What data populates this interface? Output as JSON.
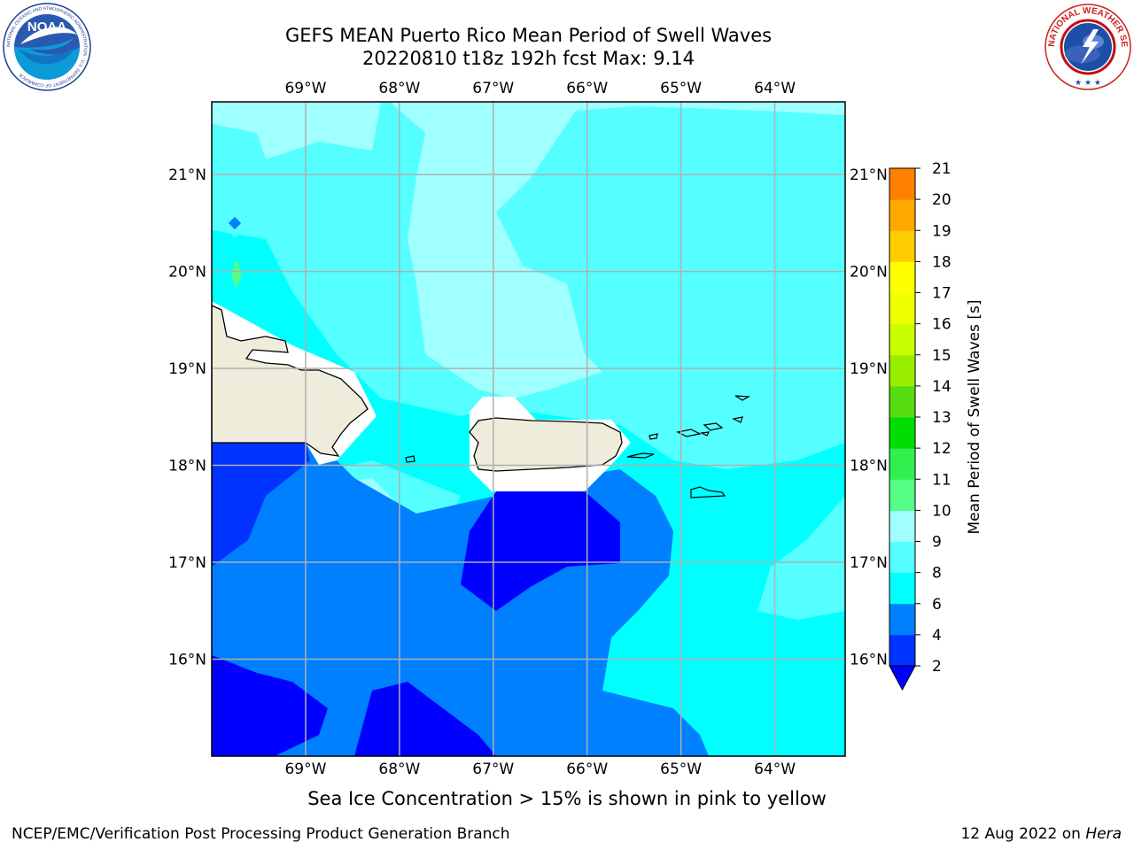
{
  "title": {
    "line1": "GEFS MEAN Puerto Rico Mean Period of Swell Waves",
    "line2": "20220810 t18z 192h fcst   Max: 9.14"
  },
  "logos": {
    "noaa": {
      "text": "NOAA",
      "ring_text": "NATIONAL OCEANIC AND ATMOSPHERIC ADMINISTRATION · U.S. DEPARTMENT OF COMMERCE"
    },
    "nws": {
      "ring_text": "NATIONAL WEATHER SERVICE"
    }
  },
  "map": {
    "lon_labels": [
      "69°W",
      "68°W",
      "67°W",
      "66°W",
      "65°W",
      "64°W"
    ],
    "lat_labels": [
      "21°N",
      "20°N",
      "19°N",
      "18°N",
      "17°N",
      "16°N"
    ],
    "lon_values": [
      -69,
      -68,
      -67,
      -66,
      -65,
      -64
    ],
    "lat_values": [
      21,
      20,
      19,
      18,
      17,
      16
    ],
    "extent": {
      "lon_min": -70.0,
      "lon_max": -63.25,
      "lat_min": 15.0,
      "lat_max": 21.75
    },
    "land_color": "#eeecdb",
    "grid_color": "#b0b0b0"
  },
  "colorbar": {
    "label": "Mean Period of Swell Waves [s]",
    "tick_labels": [
      "2",
      "4",
      "6",
      "8",
      "9",
      "10",
      "11",
      "12",
      "13",
      "14",
      "15",
      "16",
      "17",
      "18",
      "19",
      "20",
      "21"
    ],
    "colors": [
      "#0033ff",
      "#007fff",
      "#00ffff",
      "#55ffff",
      "#a0ffff",
      "#55ff85",
      "#30f050",
      "#00dd00",
      "#55dd10",
      "#99ee00",
      "#c8ff00",
      "#eeff00",
      "#ffff00",
      "#ffcc00",
      "#ffa800",
      "#ff8000",
      "#ff5000",
      "#ff2800",
      "#ff0000"
    ],
    "extend_color": "#0000ff"
  },
  "note": "Sea Ice Concentration > 15% is shown in pink to yellow",
  "footer": {
    "left": "NCEP/EMC/Verification Post Processing Product Generation Branch",
    "right_date": "12 Aug 2022 on",
    "right_host": "Hera"
  }
}
